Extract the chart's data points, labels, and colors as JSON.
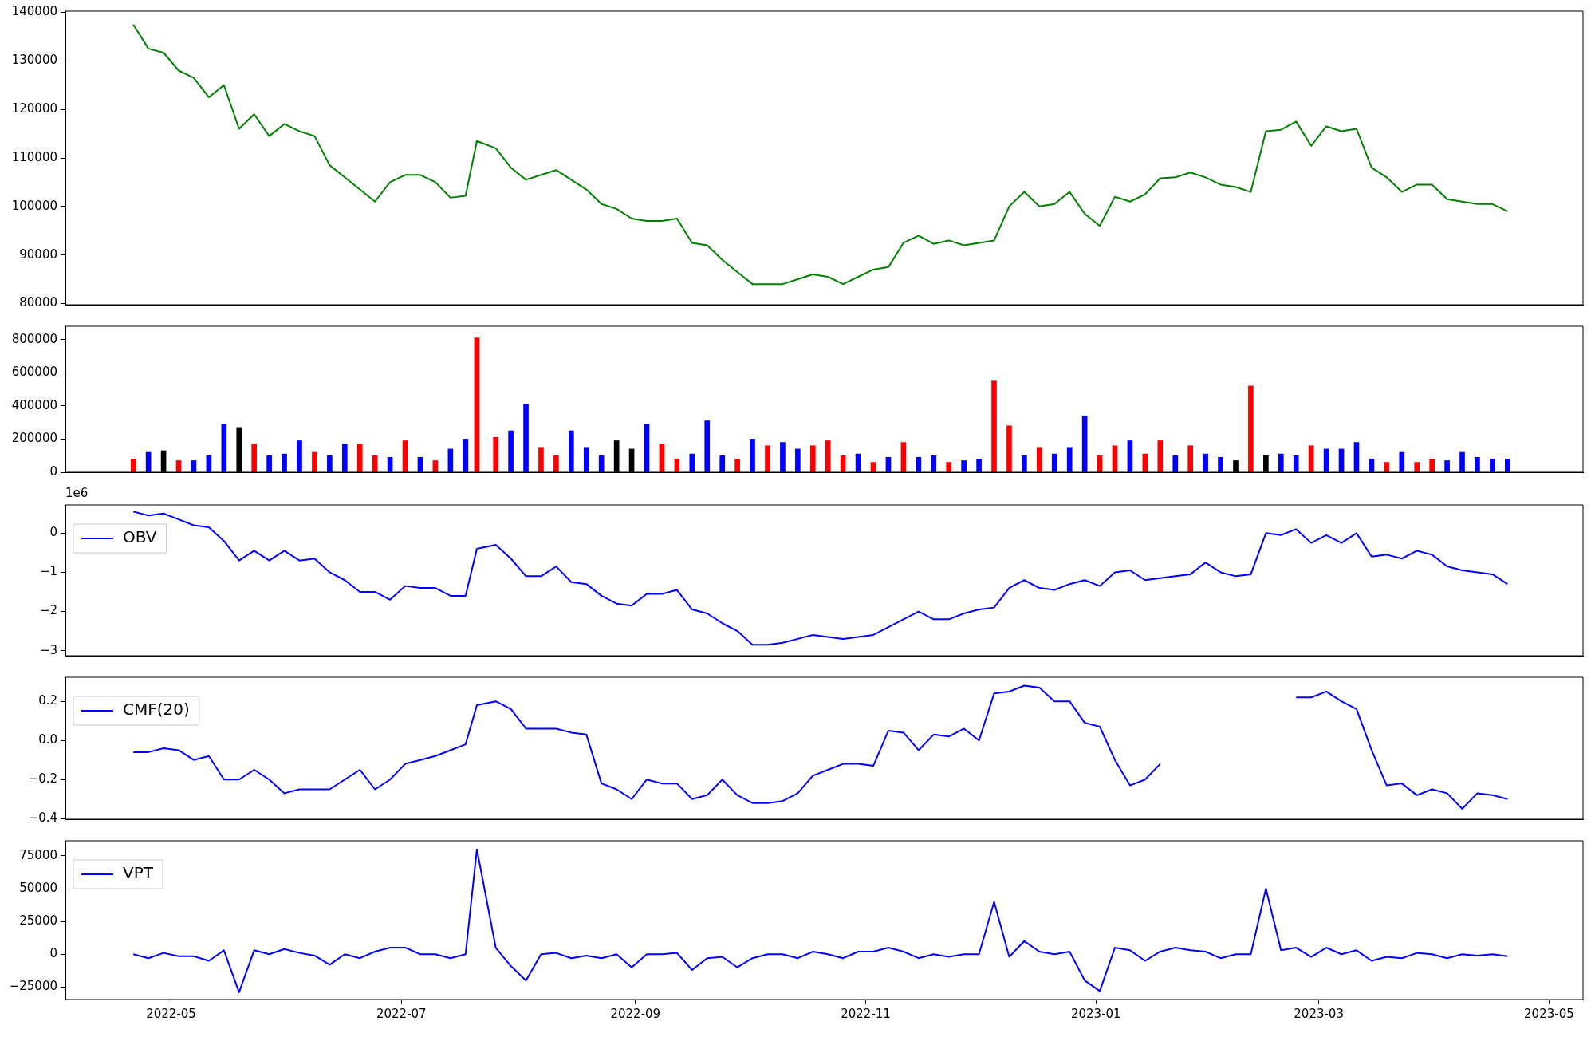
{
  "chart_data": [
    {
      "type": "line",
      "x": [
        "2022-04-21",
        "2022-04-25",
        "2022-04-29",
        "2022-05-03",
        "2022-05-07",
        "2022-05-11",
        "2022-05-15",
        "2022-05-19",
        "2022-05-23",
        "2022-05-27",
        "2022-05-31",
        "2022-06-04",
        "2022-06-08",
        "2022-06-12",
        "2022-06-16",
        "2022-06-20",
        "2022-06-24",
        "2022-06-28",
        "2022-07-02",
        "2022-07-06",
        "2022-07-10",
        "2022-07-14",
        "2022-07-18",
        "2022-07-21",
        "2022-07-26",
        "2022-07-30",
        "2022-08-03",
        "2022-08-07",
        "2022-08-11",
        "2022-08-15",
        "2022-08-19",
        "2022-08-23",
        "2022-08-27",
        "2022-08-31",
        "2022-09-04",
        "2022-09-08",
        "2022-09-12",
        "2022-09-16",
        "2022-09-20",
        "2022-09-24",
        "2022-09-28",
        "2022-10-02",
        "2022-10-06",
        "2022-10-10",
        "2022-10-14",
        "2022-10-18",
        "2022-10-22",
        "2022-10-26",
        "2022-10-30",
        "2022-11-03",
        "2022-11-07",
        "2022-11-11",
        "2022-11-15",
        "2022-11-19",
        "2022-11-23",
        "2022-11-27",
        "2022-12-01",
        "2022-12-05",
        "2022-12-09",
        "2022-12-13",
        "2022-12-17",
        "2022-12-21",
        "2022-12-25",
        "2022-12-29",
        "2023-01-02",
        "2023-01-06",
        "2023-01-10",
        "2023-01-14",
        "2023-01-18",
        "2023-01-22",
        "2023-01-26",
        "2023-01-30",
        "2023-02-03",
        "2023-02-07",
        "2023-02-11",
        "2023-02-15",
        "2023-02-19",
        "2023-02-23",
        "2023-02-27",
        "2023-03-03",
        "2023-03-07",
        "2023-03-11",
        "2023-03-15",
        "2023-03-19",
        "2023-03-23",
        "2023-03-27",
        "2023-03-31",
        "2023-04-04",
        "2023-04-08",
        "2023-04-12",
        "2023-04-16",
        "2023-04-20"
      ],
      "series": [
        {
          "color": "#008000",
          "values": [
            137500,
            132500,
            131700,
            128000,
            126500,
            122500,
            125000,
            116000,
            119000,
            114500,
            117000,
            115500,
            114500,
            108500,
            106000,
            103500,
            101000,
            105000,
            106500,
            106500,
            105000,
            101800,
            102200,
            113500,
            112000,
            108000,
            105500,
            106500,
            107500,
            105500,
            103500,
            100500,
            99500,
            97500,
            97000,
            97000,
            97500,
            92500,
            92000,
            89000,
            86500,
            84000,
            84000,
            84000,
            85000,
            86000,
            85500,
            84000,
            85500,
            87000,
            87500,
            92500,
            94000,
            92300,
            93000,
            92000,
            92500,
            93000,
            100000,
            103000,
            100000,
            100500,
            103000,
            98500,
            96000,
            102000,
            101000,
            102500,
            105800,
            106000,
            107000,
            106000,
            104500,
            104000,
            103000,
            115500,
            115800,
            117500,
            112500,
            116500,
            115500,
            116000,
            108000,
            106000,
            103000,
            104500,
            104500,
            101500,
            101000,
            100500,
            100500,
            99000
          ]
        }
      ],
      "xlim": [
        "2022-04-03",
        "2023-05-10"
      ],
      "ylim": [
        79750,
        140250
      ],
      "yticks": [
        80000,
        90000,
        100000,
        110000,
        120000,
        130000,
        140000
      ],
      "tick_labels": "y"
    },
    {
      "type": "bar",
      "x": [
        "2022-04-21",
        "2022-04-25",
        "2022-04-29",
        "2022-05-03",
        "2022-05-07",
        "2022-05-11",
        "2022-05-15",
        "2022-05-19",
        "2022-05-23",
        "2022-05-27",
        "2022-05-31",
        "2022-06-04",
        "2022-06-08",
        "2022-06-12",
        "2022-06-16",
        "2022-06-20",
        "2022-06-24",
        "2022-06-28",
        "2022-07-02",
        "2022-07-06",
        "2022-07-10",
        "2022-07-14",
        "2022-07-18",
        "2022-07-21",
        "2022-07-26",
        "2022-07-30",
        "2022-08-03",
        "2022-08-07",
        "2022-08-11",
        "2022-08-15",
        "2022-08-19",
        "2022-08-23",
        "2022-08-27",
        "2022-08-31",
        "2022-09-04",
        "2022-09-08",
        "2022-09-12",
        "2022-09-16",
        "2022-09-20",
        "2022-09-24",
        "2022-09-28",
        "2022-10-02",
        "2022-10-06",
        "2022-10-10",
        "2022-10-14",
        "2022-10-18",
        "2022-10-22",
        "2022-10-26",
        "2022-10-30",
        "2022-11-03",
        "2022-11-07",
        "2022-11-11",
        "2022-11-15",
        "2022-11-19",
        "2022-11-23",
        "2022-11-27",
        "2022-12-01",
        "2022-12-05",
        "2022-12-09",
        "2022-12-13",
        "2022-12-17",
        "2022-12-21",
        "2022-12-25",
        "2022-12-29",
        "2023-01-02",
        "2023-01-06",
        "2023-01-10",
        "2023-01-14",
        "2023-01-18",
        "2023-01-22",
        "2023-01-26",
        "2023-01-30",
        "2023-02-03",
        "2023-02-07",
        "2023-02-11",
        "2023-02-15",
        "2023-02-19",
        "2023-02-23",
        "2023-02-27",
        "2023-03-03",
        "2023-03-07",
        "2023-03-11",
        "2023-03-15",
        "2023-03-19",
        "2023-03-23",
        "2023-03-27",
        "2023-03-31",
        "2023-04-04",
        "2023-04-08",
        "2023-04-12",
        "2023-04-16",
        "2023-04-20"
      ],
      "values": [
        80000,
        120000,
        130000,
        70000,
        70000,
        100000,
        290000,
        270000,
        170000,
        100000,
        110000,
        190000,
        120000,
        100000,
        170000,
        170000,
        100000,
        90000,
        190000,
        90000,
        70000,
        140000,
        200000,
        810000,
        210000,
        250000,
        410000,
        150000,
        100000,
        250000,
        150000,
        100000,
        190000,
        140000,
        290000,
        170000,
        80000,
        110000,
        310000,
        100000,
        80000,
        200000,
        160000,
        180000,
        140000,
        160000,
        190000,
        100000,
        110000,
        60000,
        90000,
        180000,
        90000,
        100000,
        60000,
        70000,
        80000,
        550000,
        280000,
        100000,
        150000,
        110000,
        150000,
        340000,
        100000,
        160000,
        190000,
        110000,
        190000,
        100000,
        160000,
        110000,
        90000,
        70000,
        520000,
        100000,
        110000,
        100000,
        160000,
        140000,
        140000,
        180000,
        80000,
        60000,
        120000,
        60000,
        80000,
        70000,
        120000,
        90000,
        80000,
        80000
      ],
      "colors": [
        "#ff0000",
        "#0000ff",
        "#000000",
        "#ff0000",
        "#0000ff",
        "#0000ff",
        "#0000ff",
        "#000000",
        "#ff0000",
        "#0000ff",
        "#0000ff",
        "#0000ff",
        "#ff0000",
        "#0000ff",
        "#0000ff",
        "#ff0000",
        "#ff0000",
        "#0000ff",
        "#ff0000",
        "#0000ff",
        "#ff0000",
        "#0000ff",
        "#0000ff",
        "#ff0000",
        "#ff0000",
        "#0000ff",
        "#0000ff",
        "#ff0000",
        "#ff0000",
        "#0000ff",
        "#0000ff",
        "#0000ff",
        "#000000",
        "#000000",
        "#0000ff",
        "#ff0000",
        "#ff0000",
        "#0000ff",
        "#0000ff",
        "#0000ff",
        "#ff0000",
        "#0000ff",
        "#ff0000",
        "#0000ff",
        "#0000ff",
        "#ff0000",
        "#ff0000",
        "#ff0000",
        "#0000ff",
        "#ff0000",
        "#0000ff",
        "#ff0000",
        "#0000ff",
        "#0000ff",
        "#ff0000",
        "#0000ff",
        "#0000ff",
        "#ff0000",
        "#ff0000",
        "#0000ff",
        "#ff0000",
        "#0000ff",
        "#0000ff",
        "#0000ff",
        "#ff0000",
        "#ff0000",
        "#0000ff",
        "#ff0000",
        "#ff0000",
        "#0000ff",
        "#ff0000",
        "#0000ff",
        "#0000ff",
        "#000000",
        "#ff0000",
        "#000000",
        "#0000ff",
        "#0000ff",
        "#ff0000",
        "#0000ff",
        "#0000ff",
        "#0000ff",
        "#0000ff",
        "#ff0000",
        "#0000ff",
        "#ff0000",
        "#ff0000",
        "#0000ff",
        "#0000ff",
        "#0000ff",
        "#0000ff",
        "#0000ff"
      ],
      "xlim": [
        "2022-04-03",
        "2023-05-10"
      ],
      "ylim": [
        0,
        880000
      ],
      "yticks": [
        0,
        200000,
        400000,
        600000,
        800000
      ],
      "tick_labels": "y"
    },
    {
      "type": "line",
      "annotations": [
        "1e6"
      ],
      "legend": "top left",
      "x": [
        "2022-04-21",
        "2022-04-25",
        "2022-04-29",
        "2022-05-03",
        "2022-05-07",
        "2022-05-11",
        "2022-05-15",
        "2022-05-19",
        "2022-05-23",
        "2022-05-27",
        "2022-05-31",
        "2022-06-04",
        "2022-06-08",
        "2022-06-12",
        "2022-06-16",
        "2022-06-20",
        "2022-06-24",
        "2022-06-28",
        "2022-07-02",
        "2022-07-06",
        "2022-07-10",
        "2022-07-14",
        "2022-07-18",
        "2022-07-21",
        "2022-07-26",
        "2022-07-30",
        "2022-08-03",
        "2022-08-07",
        "2022-08-11",
        "2022-08-15",
        "2022-08-19",
        "2022-08-23",
        "2022-08-27",
        "2022-08-31",
        "2022-09-04",
        "2022-09-08",
        "2022-09-12",
        "2022-09-16",
        "2022-09-20",
        "2022-09-24",
        "2022-09-28",
        "2022-10-02",
        "2022-10-06",
        "2022-10-10",
        "2022-10-14",
        "2022-10-18",
        "2022-10-22",
        "2022-10-26",
        "2022-10-30",
        "2022-11-03",
        "2022-11-07",
        "2022-11-11",
        "2022-11-15",
        "2022-11-19",
        "2022-11-23",
        "2022-11-27",
        "2022-12-01",
        "2022-12-05",
        "2022-12-09",
        "2022-12-13",
        "2022-12-17",
        "2022-12-21",
        "2022-12-25",
        "2022-12-29",
        "2023-01-02",
        "2023-01-06",
        "2023-01-10",
        "2023-01-14",
        "2023-01-18",
        "2023-01-22",
        "2023-01-26",
        "2023-01-30",
        "2023-02-03",
        "2023-02-07",
        "2023-02-11",
        "2023-02-15",
        "2023-02-19",
        "2023-02-23",
        "2023-02-27",
        "2023-03-03",
        "2023-03-07",
        "2023-03-11",
        "2023-03-15",
        "2023-03-19",
        "2023-03-23",
        "2023-03-27",
        "2023-03-31",
        "2023-04-04",
        "2023-04-08",
        "2023-04-12",
        "2023-04-16",
        "2023-04-20"
      ],
      "series": [
        {
          "name": "OBV",
          "color": "#0000ff",
          "values": [
            0.55,
            0.45,
            0.5,
            0.35,
            0.2,
            0.15,
            -0.2,
            -0.7,
            -0.45,
            -0.7,
            -0.45,
            -0.7,
            -0.65,
            -1.0,
            -1.2,
            -1.5,
            -1.5,
            -1.7,
            -1.35,
            -1.4,
            -1.4,
            -1.6,
            -1.6,
            -0.4,
            -0.3,
            -0.65,
            -1.1,
            -1.1,
            -0.85,
            -1.25,
            -1.3,
            -1.6,
            -1.8,
            -1.85,
            -1.55,
            -1.55,
            -1.45,
            -1.95,
            -2.05,
            -2.3,
            -2.5,
            -2.85,
            -2.85,
            -2.8,
            -2.7,
            -2.6,
            -2.65,
            -2.7,
            -2.65,
            -2.6,
            -2.4,
            -2.2,
            -2.0,
            -2.2,
            -2.2,
            -2.05,
            -1.95,
            -1.9,
            -1.4,
            -1.2,
            -1.4,
            -1.45,
            -1.3,
            -1.2,
            -1.35,
            -1.0,
            -0.95,
            -1.2,
            -1.15,
            -1.1,
            -1.05,
            -0.75,
            -1.0,
            -1.1,
            -1.05,
            0.0,
            -0.05,
            0.1,
            -0.25,
            -0.05,
            -0.25,
            0.0,
            -0.6,
            -0.55,
            -0.65,
            -0.45,
            -0.55,
            -0.85,
            -0.95,
            -1.0,
            -1.05,
            -1.3
          ]
        }
      ],
      "xlim": [
        "2022-04-03",
        "2023-05-10"
      ],
      "ylim": [
        -3.13,
        0.72
      ],
      "yticks": [
        {
          "value": -3,
          "label": "−3"
        },
        {
          "value": -2,
          "label": "−2"
        },
        {
          "value": -1,
          "label": "−1"
        },
        0
      ],
      "tick_labels": "y"
    },
    {
      "type": "line",
      "legend": "top left",
      "x": [
        "2022-04-21",
        "2022-04-25",
        "2022-04-29",
        "2022-05-03",
        "2022-05-07",
        "2022-05-11",
        "2022-05-15",
        "2022-05-19",
        "2022-05-23",
        "2022-05-27",
        "2022-05-31",
        "2022-06-04",
        "2022-06-08",
        "2022-06-12",
        "2022-06-16",
        "2022-06-20",
        "2022-06-24",
        "2022-06-28",
        "2022-07-02",
        "2022-07-06",
        "2022-07-10",
        "2022-07-14",
        "2022-07-18",
        "2022-07-21",
        "2022-07-26",
        "2022-07-30",
        "2022-08-03",
        "2022-08-07",
        "2022-08-11",
        "2022-08-15",
        "2022-08-19",
        "2022-08-23",
        "2022-08-27",
        "2022-08-31",
        "2022-09-04",
        "2022-09-08",
        "2022-09-12",
        "2022-09-16",
        "2022-09-20",
        "2022-09-24",
        "2022-09-28",
        "2022-10-02",
        "2022-10-06",
        "2022-10-10",
        "2022-10-14",
        "2022-10-18",
        "2022-10-22",
        "2022-10-26",
        "2022-10-30",
        "2022-11-03",
        "2022-11-07",
        "2022-11-11",
        "2022-11-15",
        "2022-11-19",
        "2022-11-23",
        "2022-11-27",
        "2022-12-01",
        "2022-12-05",
        "2022-12-09",
        "2022-12-13",
        "2022-12-17",
        "2022-12-21",
        "2022-12-25",
        "2022-12-29",
        "2023-01-02",
        "2023-01-06",
        "2023-01-10",
        "2023-01-14",
        "2023-01-18",
        "2023-01-22",
        "2023-01-26",
        "2023-01-30",
        "2023-02-03",
        "2023-02-07",
        "2023-02-11",
        "2023-02-15",
        "2023-02-19",
        "2023-02-23",
        "2023-02-27",
        "2023-03-03",
        "2023-03-07",
        "2023-03-11",
        "2023-03-15",
        "2023-03-19",
        "2023-03-23",
        "2023-03-27",
        "2023-03-31",
        "2023-04-04",
        "2023-04-08",
        "2023-04-12",
        "2023-04-16",
        "2023-04-20"
      ],
      "series": [
        {
          "name": "CMF(20)",
          "color": "#0000ff",
          "values": [
            -0.06,
            -0.06,
            -0.04,
            -0.05,
            -0.1,
            -0.08,
            -0.2,
            -0.2,
            -0.15,
            -0.2,
            -0.27,
            -0.25,
            -0.25,
            -0.25,
            -0.2,
            -0.15,
            -0.25,
            -0.2,
            -0.12,
            -0.1,
            -0.08,
            -0.05,
            -0.02,
            0.18,
            0.2,
            0.16,
            0.06,
            0.06,
            0.06,
            0.04,
            0.03,
            -0.22,
            -0.25,
            -0.3,
            -0.2,
            -0.22,
            -0.22,
            -0.3,
            -0.28,
            -0.2,
            -0.28,
            -0.32,
            -0.32,
            -0.31,
            -0.27,
            -0.18,
            -0.15,
            -0.12,
            -0.12,
            -0.13,
            0.05,
            0.04,
            -0.05,
            0.03,
            0.02,
            0.06,
            0.0,
            0.24,
            0.25,
            0.28,
            0.27,
            0.2,
            0.2,
            0.09,
            0.07,
            -0.1,
            -0.23,
            -0.2,
            -0.12,
            null,
            null,
            null,
            null,
            null,
            null,
            null,
            null,
            0.22,
            0.22,
            0.25,
            0.2,
            0.16,
            -0.05,
            -0.23,
            -0.22,
            -0.28,
            -0.25,
            -0.27,
            -0.35,
            -0.27,
            -0.28,
            -0.3
          ]
        }
      ],
      "xlim": [
        "2022-04-03",
        "2023-05-10"
      ],
      "ylim": [
        -0.403,
        0.323
      ],
      "yticks": [
        {
          "value": -0.4,
          "label": "−0.4"
        },
        {
          "value": -0.2,
          "label": "−0.2"
        },
        {
          "value": 0,
          "label": "0.0"
        },
        0.2
      ],
      "tick_labels": "y"
    },
    {
      "type": "line",
      "legend": "top left",
      "x": [
        "2022-04-21",
        "2022-04-25",
        "2022-04-29",
        "2022-05-03",
        "2022-05-07",
        "2022-05-11",
        "2022-05-15",
        "2022-05-19",
        "2022-05-23",
        "2022-05-27",
        "2022-05-31",
        "2022-06-04",
        "2022-06-08",
        "2022-06-12",
        "2022-06-16",
        "2022-06-20",
        "2022-06-24",
        "2022-06-28",
        "2022-07-02",
        "2022-07-06",
        "2022-07-10",
        "2022-07-14",
        "2022-07-18",
        "2022-07-21",
        "2022-07-26",
        "2022-07-30",
        "2022-08-03",
        "2022-08-07",
        "2022-08-11",
        "2022-08-15",
        "2022-08-19",
        "2022-08-23",
        "2022-08-27",
        "2022-08-31",
        "2022-09-04",
        "2022-09-08",
        "2022-09-12",
        "2022-09-16",
        "2022-09-20",
        "2022-09-24",
        "2022-09-28",
        "2022-10-02",
        "2022-10-06",
        "2022-10-10",
        "2022-10-14",
        "2022-10-18",
        "2022-10-22",
        "2022-10-26",
        "2022-10-30",
        "2022-11-03",
        "2022-11-07",
        "2022-11-11",
        "2022-11-15",
        "2022-11-19",
        "2022-11-23",
        "2022-11-27",
        "2022-12-01",
        "2022-12-05",
        "2022-12-09",
        "2022-12-13",
        "2022-12-17",
        "2022-12-21",
        "2022-12-25",
        "2022-12-29",
        "2023-01-02",
        "2023-01-06",
        "2023-01-10",
        "2023-01-14",
        "2023-01-18",
        "2023-01-22",
        "2023-01-26",
        "2023-01-30",
        "2023-02-03",
        "2023-02-07",
        "2023-02-11",
        "2023-02-15",
        "2023-02-19",
        "2023-02-23",
        "2023-02-27",
        "2023-03-03",
        "2023-03-07",
        "2023-03-11",
        "2023-03-15",
        "2023-03-19",
        "2023-03-23",
        "2023-03-27",
        "2023-03-31",
        "2023-04-04",
        "2023-04-08",
        "2023-04-12",
        "2023-04-16",
        "2023-04-20"
      ],
      "series": [
        {
          "name": "VPT",
          "color": "#0000ff",
          "values": [
            0,
            -3000,
            1000,
            -1500,
            -1500,
            -5000,
            3000,
            -29000,
            3000,
            0,
            4000,
            1000,
            -1000,
            -8000,
            0,
            -3000,
            2000,
            5000,
            5000,
            0,
            0,
            -3000,
            0,
            80000,
            5000,
            -9000,
            -20000,
            0,
            1000,
            -3000,
            -1000,
            -3000,
            0,
            -10000,
            0,
            0,
            1000,
            -12000,
            -3000,
            -2000,
            -10000,
            -3000,
            0,
            0,
            -3000,
            2000,
            0,
            -3000,
            2000,
            2000,
            5000,
            2000,
            -3000,
            0,
            -2000,
            0,
            0,
            40000,
            -2000,
            10000,
            2000,
            0,
            2000,
            -20000,
            -28000,
            5000,
            3000,
            -5000,
            2000,
            5000,
            3000,
            2000,
            -3000,
            0,
            0,
            50000,
            3000,
            5000,
            -2000,
            5000,
            0,
            3000,
            -5000,
            -2000,
            -3000,
            1000,
            0,
            -3000,
            0,
            -1000,
            0,
            -1500
          ]
        }
      ],
      "xlim": [
        "2022-04-03",
        "2023-05-10"
      ],
      "xticks": [
        {
          "value": "2022-05-01",
          "label": "2022-05"
        },
        {
          "value": "2022-07-01",
          "label": "2022-07"
        },
        {
          "value": "2022-09-01",
          "label": "2022-09"
        },
        {
          "value": "2022-11-01",
          "label": "2022-11"
        },
        {
          "value": "2023-01-01",
          "label": "2023-01"
        },
        {
          "value": "2023-03-01",
          "label": "2023-03"
        },
        {
          "value": "2023-05-01",
          "label": "2023-05"
        }
      ],
      "ylim": [
        -34500,
        86500
      ],
      "yticks": [
        {
          "value": -25000,
          "label": "−25000"
        },
        0,
        25000,
        50000,
        75000
      ]
    }
  ]
}
